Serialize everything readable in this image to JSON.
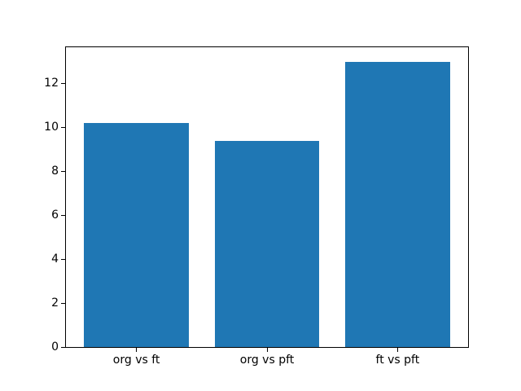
{
  "figure": {
    "background_color": "#ffffff",
    "axis_color": "#000000",
    "text_color": "#000000"
  },
  "chart_data": {
    "type": "bar",
    "categories": [
      "org vs ft",
      "org vs pft",
      "ft vs pft"
    ],
    "values": [
      10.2,
      9.4,
      13.0
    ],
    "title": "",
    "xlabel": "",
    "ylabel": "",
    "ylim": [
      0,
      13.65
    ],
    "yticks": [
      0,
      2,
      4,
      6,
      8,
      10,
      12
    ],
    "bar_color": "#1f77b4",
    "bar_width_fraction": 0.8,
    "grid": false,
    "legend": null
  }
}
